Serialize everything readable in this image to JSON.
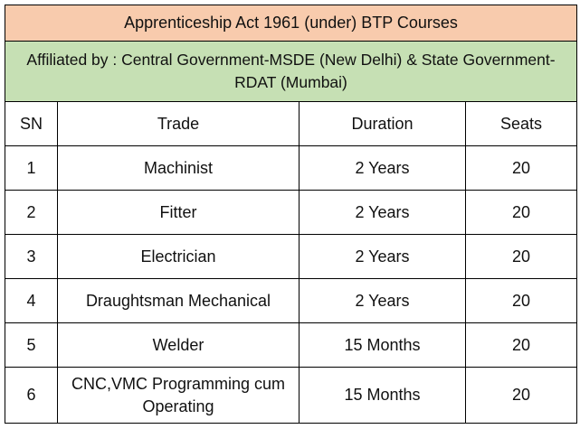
{
  "title": "Apprenticeship Act 1961 (under) BTP Courses",
  "affiliation": "Affiliated by : Central Government-MSDE (New Delhi) & State Government-RDAT (Mumbai)",
  "columns": [
    "SN",
    "Trade",
    "Duration",
    "Seats"
  ],
  "rows": [
    [
      "1",
      "Machinist",
      "2 Years",
      "20"
    ],
    [
      "2",
      "Fitter",
      "2 Years",
      "20"
    ],
    [
      "3",
      "Electrician",
      "2 Years",
      "20"
    ],
    [
      "4",
      "Draughtsman Mechanical",
      "2 Years",
      "20"
    ],
    [
      "5",
      "Welder",
      "15 Months",
      "20"
    ],
    [
      "6",
      "CNC,VMC Programming cum Operating",
      "15 Months",
      "20"
    ]
  ],
  "colors": {
    "title_bg": "#f8cbad",
    "affiliation_bg": "#c6e0b4"
  }
}
